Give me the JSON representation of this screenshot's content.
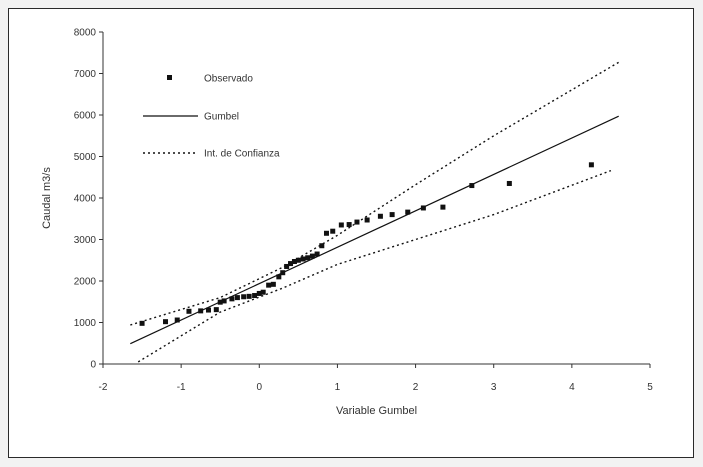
{
  "chart_data": {
    "type": "scatter",
    "title": "",
    "xlabel": "Variable Gumbel",
    "ylabel": "Caudal m3/s",
    "xlim": [
      -2,
      5
    ],
    "ylim": [
      0,
      8000
    ],
    "xticks": [
      -2,
      -1,
      0,
      1,
      2,
      3,
      4,
      5
    ],
    "yticks": [
      0,
      1000,
      2000,
      3000,
      4000,
      5000,
      6000,
      7000,
      8000
    ],
    "x_tick_labels": [
      "-2",
      "-1",
      "0",
      "1",
      "2",
      "3",
      "4",
      "5"
    ],
    "y_tick_labels": [
      "0",
      "1000",
      "2000",
      "3000",
      "4000",
      "5000",
      "6000",
      "7000",
      "8000"
    ],
    "grid": false,
    "legend_position": "top-left",
    "series": [
      {
        "name": "Observado",
        "kind": "points",
        "points": [
          [
            -1.5,
            980
          ],
          [
            -1.2,
            1020
          ],
          [
            -1.05,
            1060
          ],
          [
            -0.9,
            1270
          ],
          [
            -0.75,
            1280
          ],
          [
            -0.65,
            1300
          ],
          [
            -0.55,
            1310
          ],
          [
            -0.5,
            1490
          ],
          [
            -0.45,
            1520
          ],
          [
            -0.35,
            1570
          ],
          [
            -0.28,
            1600
          ],
          [
            -0.2,
            1620
          ],
          [
            -0.13,
            1630
          ],
          [
            -0.06,
            1650
          ],
          [
            0.0,
            1700
          ],
          [
            0.05,
            1730
          ],
          [
            0.12,
            1900
          ],
          [
            0.18,
            1920
          ],
          [
            0.25,
            2100
          ],
          [
            0.3,
            2200
          ],
          [
            0.35,
            2350
          ],
          [
            0.4,
            2420
          ],
          [
            0.45,
            2470
          ],
          [
            0.5,
            2500
          ],
          [
            0.56,
            2530
          ],
          [
            0.62,
            2560
          ],
          [
            0.68,
            2600
          ],
          [
            0.74,
            2650
          ],
          [
            0.8,
            2850
          ],
          [
            0.86,
            3150
          ],
          [
            0.94,
            3200
          ],
          [
            1.05,
            3350
          ],
          [
            1.15,
            3360
          ],
          [
            1.25,
            3420
          ],
          [
            1.38,
            3470
          ],
          [
            1.55,
            3560
          ],
          [
            1.7,
            3600
          ],
          [
            1.9,
            3660
          ],
          [
            2.1,
            3760
          ],
          [
            2.35,
            3780
          ],
          [
            2.72,
            4300
          ],
          [
            3.2,
            4350
          ],
          [
            4.25,
            4800
          ]
        ]
      },
      {
        "name": "Gumbel",
        "kind": "solid-line",
        "points": [
          [
            -1.65,
            490
          ],
          [
            4.6,
            5970
          ]
        ]
      },
      {
        "name": "Int. de Confianza",
        "kind": "dotted-line",
        "points": [
          [
            -1.65,
            940
          ],
          [
            -0.5,
            1600
          ],
          [
            0.3,
            2330
          ],
          [
            1.0,
            3100
          ],
          [
            2.0,
            4320
          ],
          [
            3.0,
            5500
          ],
          [
            4.6,
            7270
          ]
        ]
      },
      {
        "name": "Int. de Confianza",
        "kind": "dotted-line",
        "points": [
          [
            -1.55,
            50
          ],
          [
            -0.5,
            1250
          ],
          [
            0.3,
            1830
          ],
          [
            1.0,
            2400
          ],
          [
            2.0,
            3000
          ],
          [
            3.0,
            3600
          ],
          [
            4.5,
            4660
          ]
        ]
      }
    ],
    "legend": [
      {
        "label": "Observado",
        "marker": "point"
      },
      {
        "label": "Gumbel",
        "marker": "solid"
      },
      {
        "label": "Int. de Confianza",
        "marker": "dotted"
      }
    ],
    "colors": {
      "ink": "#111111",
      "axis": "#333333",
      "text": "#333333"
    }
  }
}
